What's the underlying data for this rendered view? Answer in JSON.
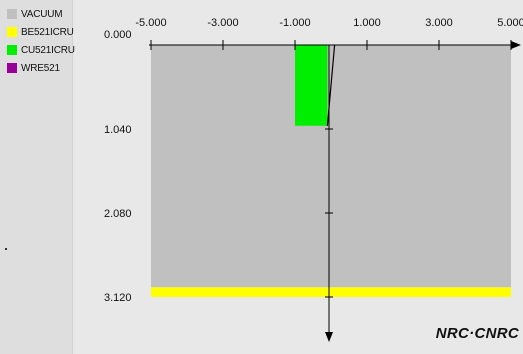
{
  "legend": {
    "items": [
      {
        "label": "VACUUM",
        "color": "#c0c0c0"
      },
      {
        "label": "BE521ICRU",
        "color": "#ffff00"
      },
      {
        "label": "CU521ICRU",
        "color": "#00ee00"
      },
      {
        "label": "WRE521",
        "color": "#990099"
      }
    ]
  },
  "plot": {
    "x_ticks": [
      "-5.000",
      "-3.000",
      "-1.000",
      "1.000",
      "3.000",
      "5.000"
    ],
    "x_tick_values": [
      -5,
      -3,
      -1,
      1,
      3,
      5
    ],
    "y_ticks": [
      "0.000",
      "1.040",
      "2.080",
      "3.120"
    ],
    "y_tick_values": [
      0,
      1.04,
      2.08,
      3.12
    ],
    "x_range": [
      -5,
      5
    ],
    "y_range": [
      0,
      3.12
    ],
    "background_color": "#e8e8e8",
    "regions": [
      {
        "material": "VACUUM",
        "color": "#c0c0c0",
        "x": [
          -5,
          5
        ],
        "y": [
          0,
          3.0
        ]
      },
      {
        "material": "CU521ICRU",
        "color": "#00ee00",
        "x": [
          -1.0,
          -0.1
        ],
        "y": [
          0,
          1.0
        ]
      },
      {
        "material": "BE521ICRU",
        "color": "#ffff00",
        "x": [
          -5,
          5
        ],
        "y": [
          3.0,
          3.12
        ]
      }
    ],
    "beam_line": {
      "x_top": 0.1,
      "x_bottom": -0.1,
      "y_top": 0.0,
      "y_bottom": 1.0
    }
  },
  "logo": {
    "text": "NRC·CNRC"
  }
}
